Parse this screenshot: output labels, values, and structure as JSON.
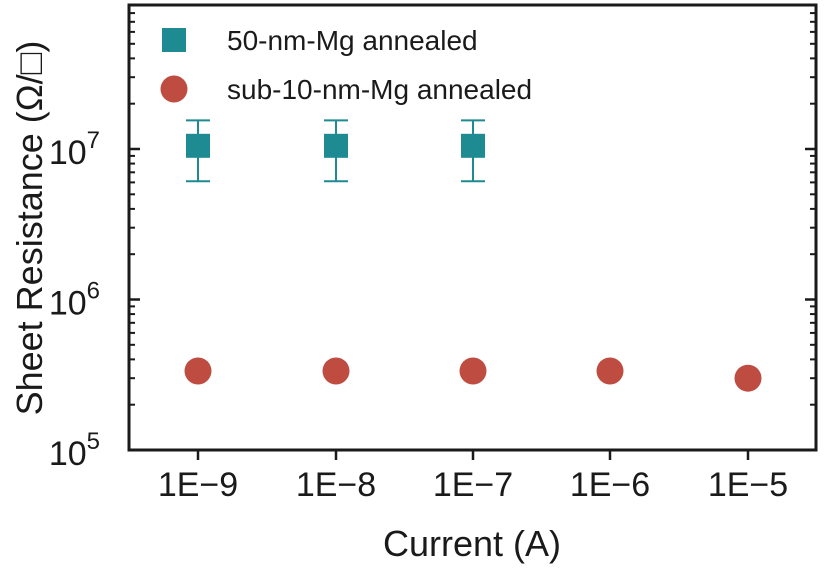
{
  "chart_data": {
    "type": "scatter",
    "title": "",
    "xlabel": "Current (A)",
    "ylabel": "Sheet Resistance (Ω/□)",
    "y_scale": "log",
    "ylim": [
      100000,
      100000000
    ],
    "x_scale": "log",
    "categories": [
      "1E−9",
      "1E−8",
      "1E−7",
      "1E−6",
      "1E−5"
    ],
    "yticks": [
      {
        "base": "10",
        "exp": "5"
      },
      {
        "base": "10",
        "exp": "6"
      },
      {
        "base": "10",
        "exp": "7"
      }
    ],
    "legend_position": "top-left",
    "grid": false,
    "series": [
      {
        "name": "50-nm-Mg annealed",
        "marker": "square",
        "color": "#1e8a92",
        "x": [
          1e-09,
          1e-08,
          1e-07
        ],
        "values": [
          10500000,
          10500000,
          10500000
        ],
        "error_low": [
          6100000,
          6100000,
          6100000
        ],
        "error_high": [
          15500000,
          15500000,
          15500000
        ]
      },
      {
        "name": "sub-10-nm-Mg annealed",
        "marker": "circle",
        "color": "#bf4c40",
        "x": [
          1e-09,
          1e-08,
          1e-07,
          1e-06,
          1e-05
        ],
        "values": [
          335000,
          335000,
          335000,
          335000,
          300000
        ]
      }
    ]
  }
}
